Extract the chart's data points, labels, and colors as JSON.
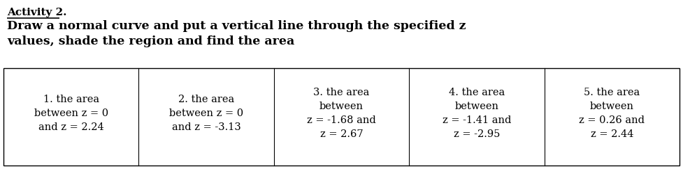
{
  "activity_label": "Activity 2.",
  "title_main": "Draw a normal curve and put a vertical line through the specified z\nvalues, shade the region and find the area",
  "headers": [
    "1. the area\nbetween z = 0\nand z = 2.24",
    "2. the area\nbetween z = 0\nand z = -3.13",
    "3. the area\nbetween\nz = -1.68 and\nz = 2.67",
    "4. the area\nbetween\nz = -1.41 and\nz = -2.95",
    "5. the area\nbetween\nz = 0.26 and\nz = 2.44"
  ],
  "num_cols": 5,
  "background_color": "#ffffff",
  "text_color": "#000000",
  "title_fontsize": 12.5,
  "cell_fontsize": 10.5,
  "activity_fontsize": 11,
  "underline_color": "#000000"
}
